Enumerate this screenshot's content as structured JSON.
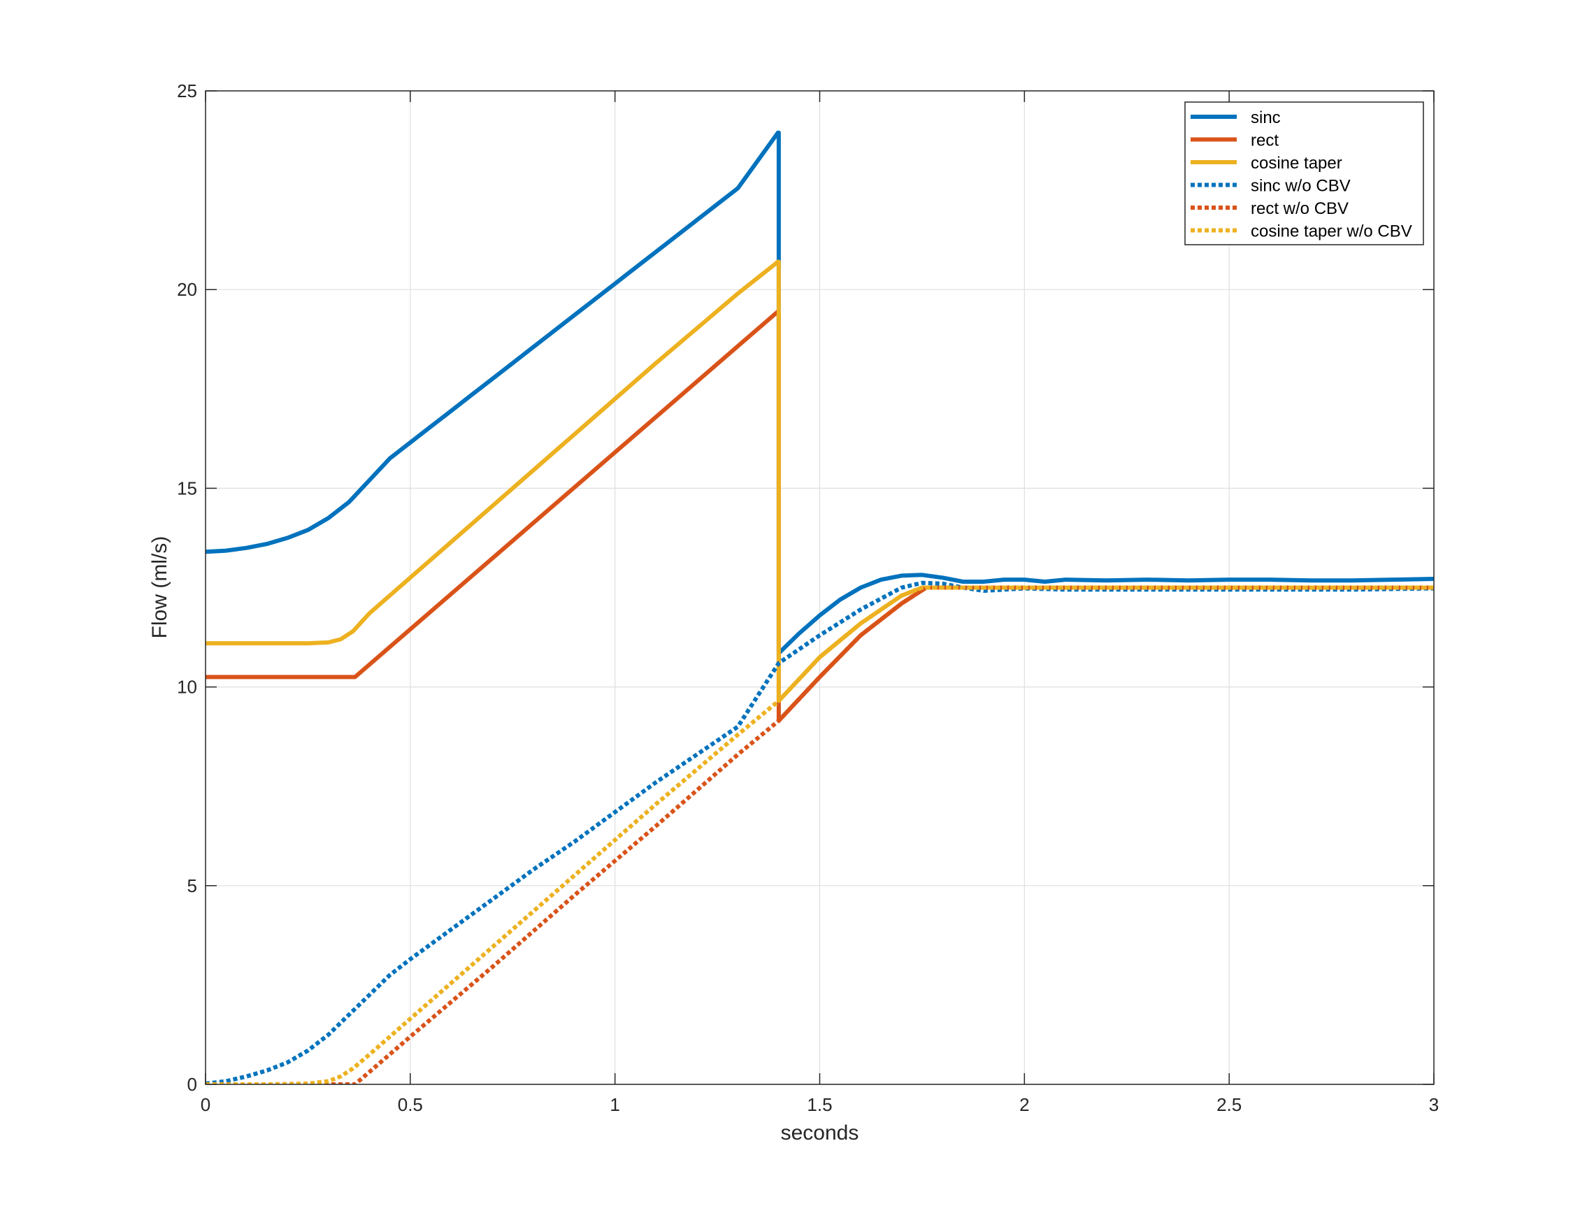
{
  "chart_data": {
    "type": "line",
    "title": "",
    "xlabel": "seconds",
    "ylabel": "Flow (ml/s)",
    "xlim": [
      0,
      3
    ],
    "ylim": [
      0,
      25
    ],
    "xticks": [
      0,
      0.5,
      1,
      1.5,
      2,
      2.5,
      3
    ],
    "xtick_labels": [
      "0",
      "0.5",
      "1",
      "1.5",
      "2",
      "2.5",
      "3"
    ],
    "yticks": [
      0,
      5,
      10,
      15,
      20,
      25
    ],
    "ytick_labels": [
      "0",
      "5",
      "10",
      "15",
      "20",
      "25"
    ],
    "grid": true,
    "box": true,
    "legend_position": "top-right",
    "series": [
      {
        "name": "sinc",
        "color": "#0072BD",
        "style": "solid",
        "x": [
          0,
          0.05,
          0.1,
          0.15,
          0.2,
          0.25,
          0.3,
          0.35,
          0.4,
          0.45,
          0.5,
          0.55,
          0.6,
          0.65,
          0.7,
          0.75,
          0.8,
          0.9,
          1.0,
          1.1,
          1.2,
          1.3,
          1.398,
          1.4,
          1.4,
          1.45,
          1.5,
          1.55,
          1.6,
          1.65,
          1.7,
          1.75,
          1.8,
          1.85,
          1.9,
          1.95,
          2.0,
          2.05,
          2.1,
          2.2,
          2.3,
          2.4,
          2.5,
          2.6,
          2.7,
          2.8,
          2.9,
          3.0
        ],
        "y": [
          13.4,
          13.43,
          13.5,
          13.6,
          13.75,
          13.95,
          14.25,
          14.65,
          15.2,
          15.75,
          16.15,
          16.55,
          16.95,
          17.35,
          17.75,
          18.15,
          18.55,
          19.35,
          20.15,
          20.95,
          21.75,
          22.55,
          23.95,
          23.95,
          10.85,
          11.35,
          11.8,
          12.2,
          12.5,
          12.7,
          12.8,
          12.82,
          12.75,
          12.65,
          12.65,
          12.7,
          12.7,
          12.65,
          12.7,
          12.68,
          12.7,
          12.68,
          12.7,
          12.7,
          12.68,
          12.68,
          12.7,
          12.72
        ]
      },
      {
        "name": "rect",
        "color": "#D95319",
        "style": "solid",
        "x": [
          0,
          0.2,
          0.365,
          1.398,
          1.4,
          1.4,
          1.5,
          1.6,
          1.7,
          1.76,
          1.8,
          2.0,
          2.5,
          3.0
        ],
        "y": [
          10.25,
          10.25,
          10.25,
          19.45,
          19.45,
          9.15,
          10.25,
          11.3,
          12.1,
          12.5,
          12.5,
          12.5,
          12.5,
          12.5
        ]
      },
      {
        "name": "cosine taper",
        "color": "#EDB120",
        "style": "solid",
        "x": [
          0,
          0.15,
          0.25,
          0.3,
          0.33,
          0.36,
          0.4,
          0.5,
          0.7,
          0.9,
          1.1,
          1.3,
          1.398,
          1.4,
          1.4,
          1.5,
          1.6,
          1.7,
          1.75,
          1.8,
          2.0,
          2.5,
          3.0
        ],
        "y": [
          11.1,
          11.1,
          11.1,
          11.12,
          11.2,
          11.4,
          11.85,
          12.75,
          14.55,
          16.35,
          18.15,
          19.9,
          20.7,
          20.7,
          9.65,
          10.75,
          11.6,
          12.3,
          12.5,
          12.5,
          12.5,
          12.5,
          12.5
        ]
      },
      {
        "name": "sinc w/o CBV",
        "color": "#0072BD",
        "style": "dotted",
        "x": [
          0,
          0.05,
          0.1,
          0.15,
          0.2,
          0.25,
          0.3,
          0.35,
          0.4,
          0.45,
          0.5,
          0.6,
          0.7,
          0.8,
          0.9,
          1.0,
          1.1,
          1.2,
          1.3,
          1.4,
          1.5,
          1.6,
          1.7,
          1.75,
          1.8,
          1.85,
          1.9,
          1.95,
          2.0,
          2.1,
          2.2,
          2.4,
          2.6,
          2.8,
          3.0
        ],
        "y": [
          0.02,
          0.08,
          0.2,
          0.35,
          0.55,
          0.85,
          1.25,
          1.75,
          2.25,
          2.75,
          3.15,
          3.9,
          4.65,
          5.4,
          6.1,
          6.85,
          7.6,
          8.3,
          9.0,
          10.6,
          11.3,
          11.95,
          12.5,
          12.62,
          12.6,
          12.5,
          12.42,
          12.45,
          12.48,
          12.45,
          12.45,
          12.45,
          12.45,
          12.45,
          12.48
        ]
      },
      {
        "name": "rect w/o CBV",
        "color": "#D95319",
        "style": "dotted",
        "x": [
          0,
          0.2,
          0.365,
          0.5,
          0.7,
          0.9,
          1.1,
          1.3,
          1.4,
          1.5,
          1.6,
          1.7,
          1.76,
          1.8,
          2.0,
          2.5,
          3.0
        ],
        "y": [
          0,
          0,
          0,
          1.2,
          2.95,
          4.75,
          6.5,
          8.3,
          9.15,
          10.25,
          11.3,
          12.1,
          12.5,
          12.5,
          12.5,
          12.5,
          12.5
        ]
      },
      {
        "name": "cosine taper w/o CBV",
        "color": "#EDB120",
        "style": "dotted",
        "x": [
          0,
          0.15,
          0.25,
          0.3,
          0.33,
          0.36,
          0.4,
          0.5,
          0.7,
          0.9,
          1.1,
          1.3,
          1.4,
          1.5,
          1.6,
          1.7,
          1.75,
          1.8,
          2.0,
          2.5,
          3.0
        ],
        "y": [
          0,
          0,
          0.02,
          0.08,
          0.2,
          0.4,
          0.75,
          1.65,
          3.45,
          5.25,
          7.05,
          8.8,
          9.65,
          10.75,
          11.6,
          12.3,
          12.5,
          12.5,
          12.5,
          12.5,
          12.5
        ]
      }
    ]
  }
}
